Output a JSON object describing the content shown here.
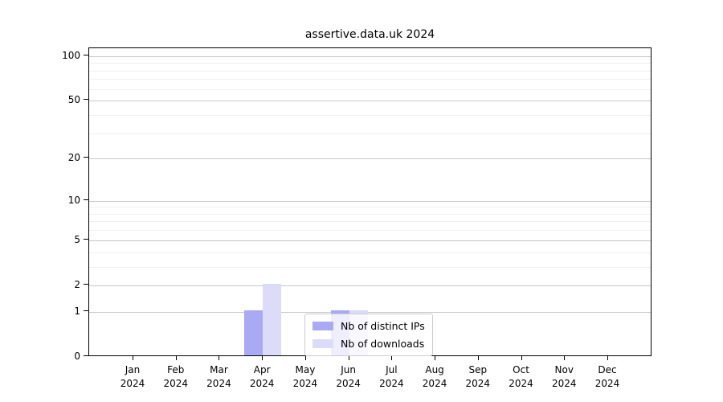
{
  "chart_data": {
    "type": "bar",
    "title": "assertive.data.uk 2024",
    "categories": [
      "Jan",
      "Feb",
      "Mar",
      "Apr",
      "May",
      "Jun",
      "Jul",
      "Aug",
      "Sep",
      "Oct",
      "Nov",
      "Dec"
    ],
    "x_year_label": "2024",
    "series": [
      {
        "name": "Nb of distinct IPs",
        "color": "#a9a9f4",
        "values": [
          0,
          0,
          0,
          1,
          0,
          1,
          0,
          0,
          0,
          0,
          0,
          0
        ]
      },
      {
        "name": "Nb of downloads",
        "color": "#dcdcf8",
        "values": [
          0,
          0,
          0,
          2,
          0,
          1,
          0,
          0,
          0,
          0,
          0,
          0
        ]
      }
    ],
    "xlabel": "",
    "ylabel": "",
    "y_scale": "log1p",
    "ylim": [
      0,
      113
    ],
    "y_ticks_major": [
      0,
      1,
      2,
      5,
      10,
      20,
      50,
      100
    ],
    "y_ticks_minor": [
      3,
      4,
      6,
      7,
      8,
      9,
      30,
      40,
      60,
      70,
      80,
      90
    ],
    "grid": "horizontal",
    "legend_position": "lower-center-inside"
  }
}
